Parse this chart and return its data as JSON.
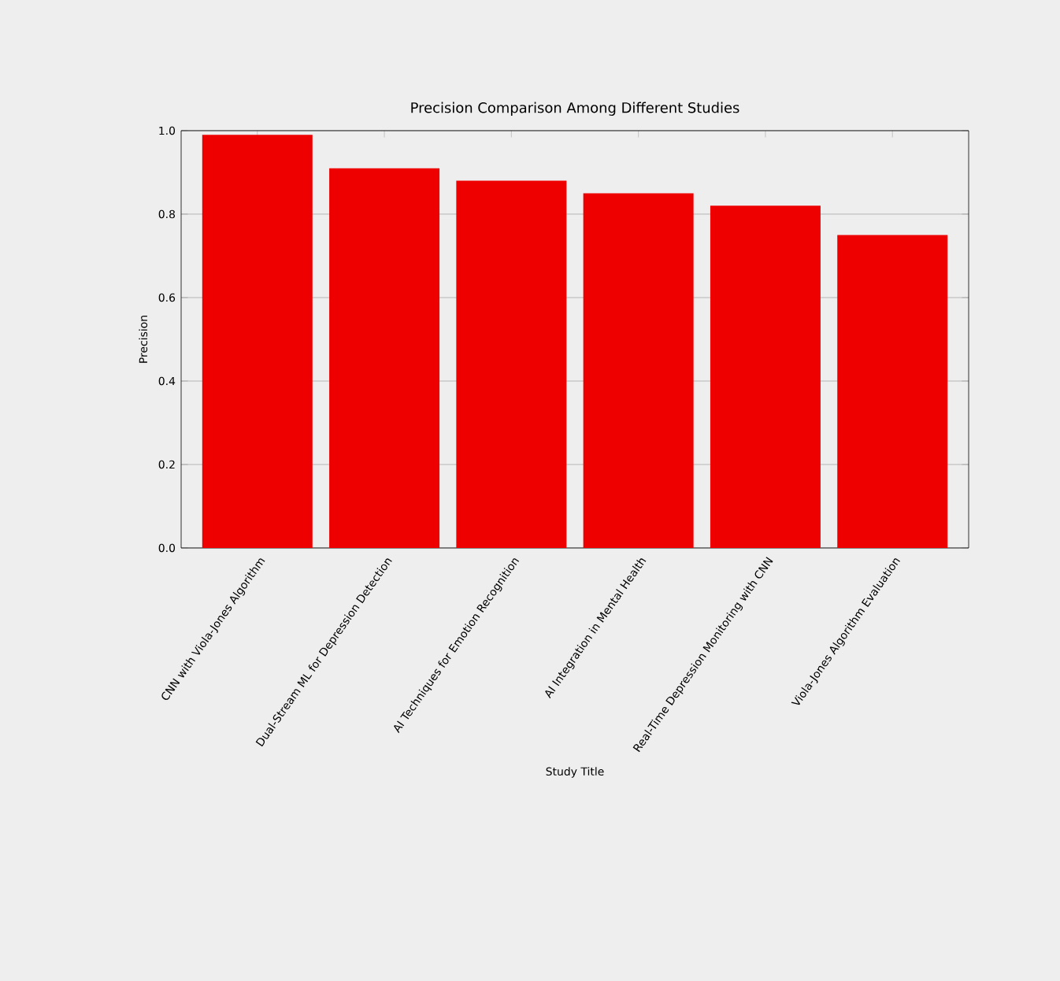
{
  "chart_data": {
    "type": "bar",
    "title": "Precision Comparison Among Different Studies",
    "xlabel": "Study Title",
    "ylabel": "Precision",
    "categories": [
      "CNN with Viola-Jones Algorithm",
      "Dual-Stream ML for Depression Detection",
      "AI Techniques for Emotion Recognition",
      "AI Integration in Mental Health",
      "Real-Time Depression Monitoring with CNN",
      "Viola-Jones Algorithm Evaluation"
    ],
    "values": [
      0.99,
      0.91,
      0.88,
      0.85,
      0.82,
      0.75
    ],
    "color": "#ee0000",
    "ylim": [
      0,
      1
    ],
    "yticks": [
      {
        "value": 0,
        "label": "0.0"
      },
      {
        "value": 0.2,
        "label": "0.2"
      },
      {
        "value": 0.4,
        "label": "0.4"
      },
      {
        "value": 0.6,
        "label": "0.6"
      },
      {
        "value": 0.8,
        "label": "0.8"
      },
      {
        "value": 1,
        "label": "1.0"
      }
    ],
    "grid": "y"
  }
}
